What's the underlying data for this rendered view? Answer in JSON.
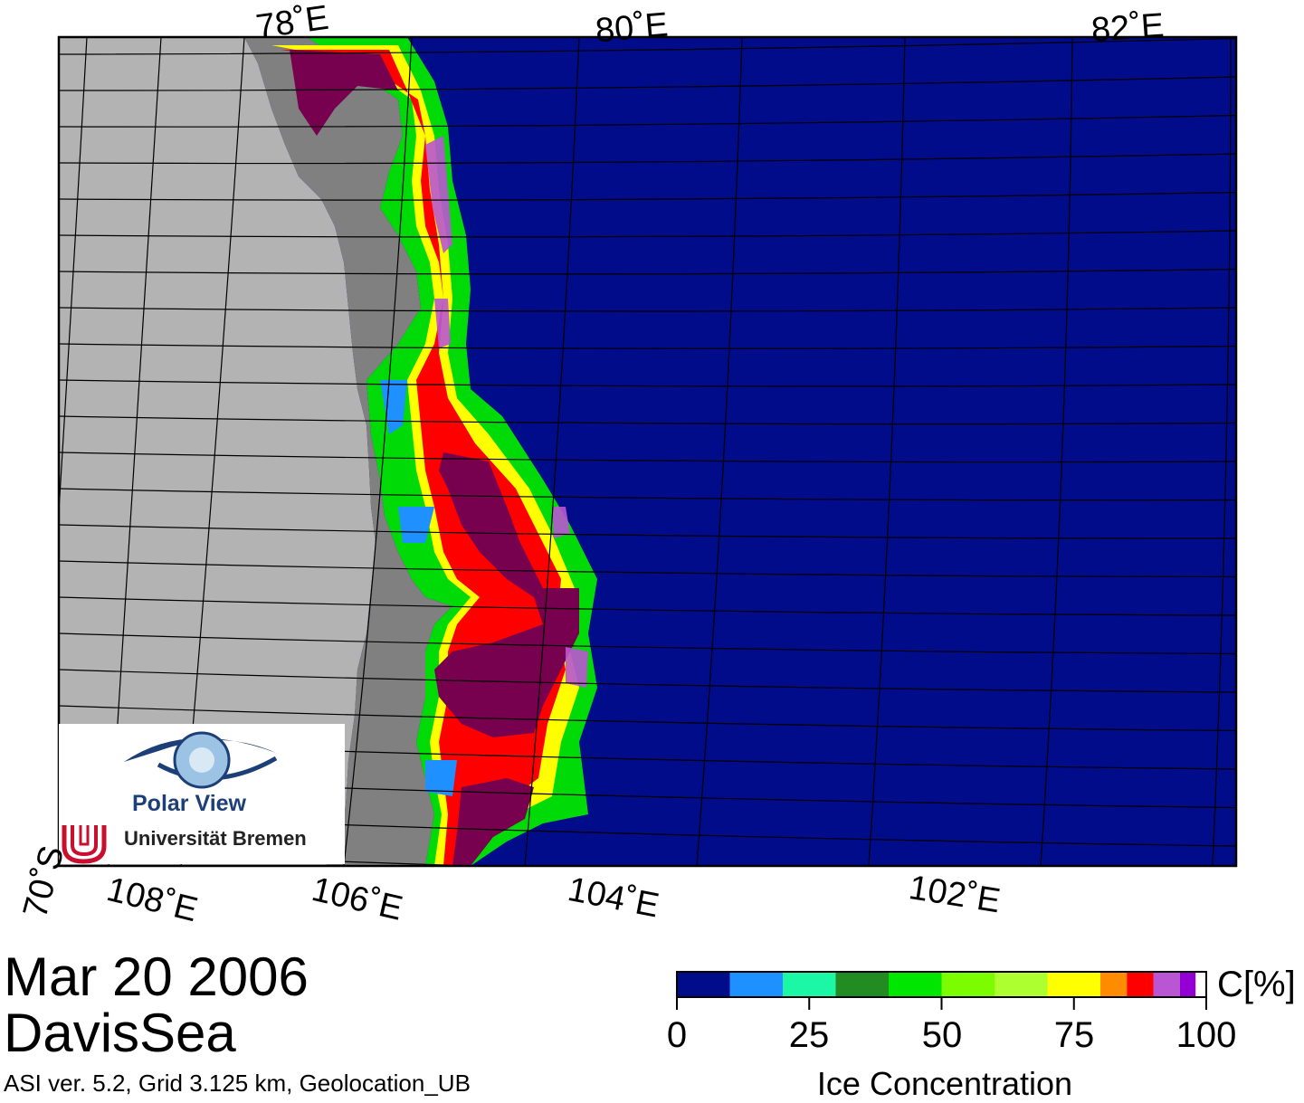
{
  "map": {
    "lon_labels_top": [
      "78˚E",
      "80˚E",
      "82˚E"
    ],
    "lon_labels_bottom": [
      "108˚E",
      "106˚E",
      "104˚E",
      "102˚E"
    ],
    "lat_label": "70˚S",
    "colors": {
      "open_water": "#000c8a",
      "land": "#b3b3b3",
      "ice_shelf": "#808080",
      "grid": "#000000"
    }
  },
  "logo": {
    "line1": "Polar View",
    "line2": "Universität Bremen"
  },
  "info": {
    "date": "Mar 20 2006",
    "region": "DavisSea",
    "footer": "ASI ver. 5.2,  Grid 3.125 km, Geolocation_UB"
  },
  "colorbar": {
    "unit": "C[%]",
    "title": "Ice Concentration",
    "ticks": [
      "0",
      "25",
      "50",
      "75",
      "100"
    ],
    "tick_values": [
      0,
      25,
      50,
      75,
      100
    ],
    "range": [
      0,
      100
    ],
    "bins": [
      {
        "from": 0,
        "to": 10,
        "color": "#000c8a"
      },
      {
        "from": 10,
        "to": 20,
        "color": "#1e90ff"
      },
      {
        "from": 20,
        "to": 30,
        "color": "#1cf7a6"
      },
      {
        "from": 30,
        "to": 40,
        "color": "#228b22"
      },
      {
        "from": 40,
        "to": 50,
        "color": "#00e600"
      },
      {
        "from": 50,
        "to": 60,
        "color": "#7cfc00"
      },
      {
        "from": 60,
        "to": 70,
        "color": "#adff2f"
      },
      {
        "from": 70,
        "to": 80,
        "color": "#ffff00"
      },
      {
        "from": 80,
        "to": 85,
        "color": "#ff8c00"
      },
      {
        "from": 85,
        "to": 90,
        "color": "#ff0000"
      },
      {
        "from": 90,
        "to": 95,
        "color": "#ba55d3"
      },
      {
        "from": 95,
        "to": 98,
        "color": "#9400d3"
      },
      {
        "from": 98,
        "to": 100,
        "color": "#ffffff"
      }
    ]
  }
}
